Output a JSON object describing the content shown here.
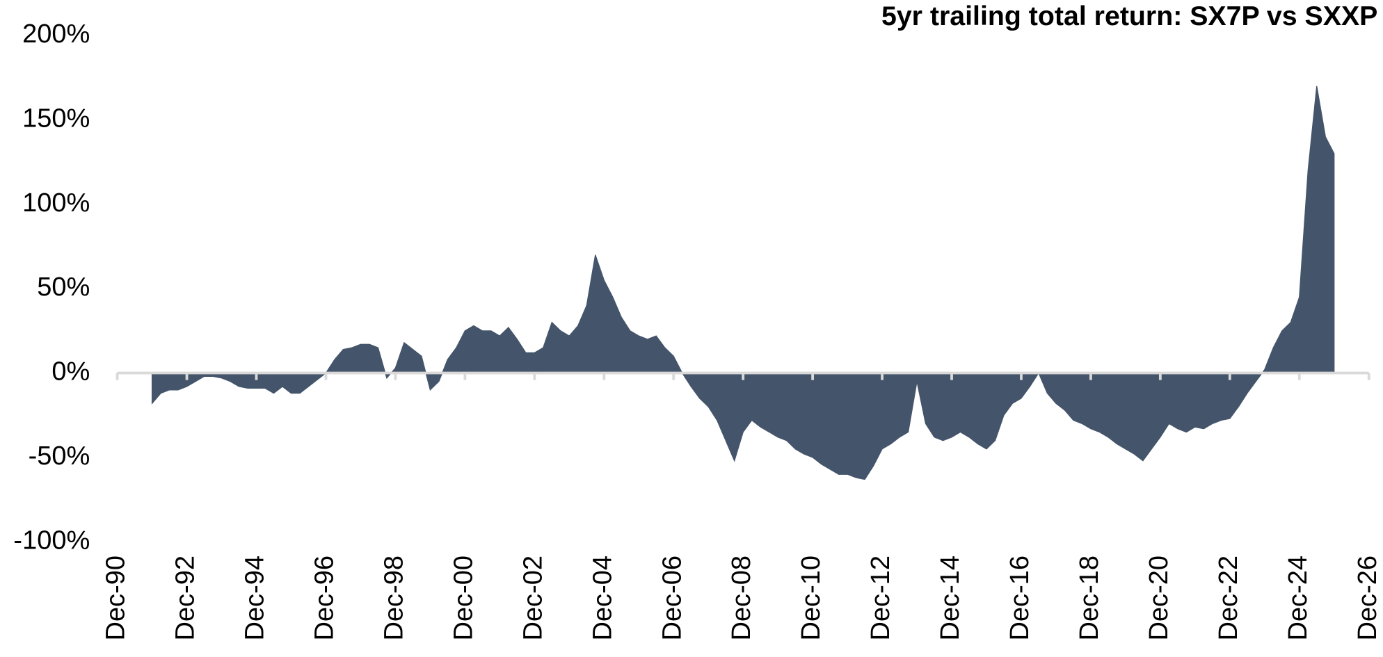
{
  "chart_data": {
    "type": "area",
    "title": "5yr trailing total return: SX7P vs SXXP",
    "color": "#44546a",
    "categories": [
      "Dec-90",
      null,
      null,
      null,
      null,
      null,
      null,
      null,
      "Dec-92",
      null,
      null,
      null,
      null,
      null,
      null,
      null,
      "Dec-94",
      null,
      null,
      null,
      null,
      null,
      null,
      null,
      "Dec-96",
      null,
      null,
      null,
      null,
      null,
      null,
      null,
      "Dec-98",
      null,
      null,
      null,
      null,
      null,
      null,
      null,
      "Dec-00",
      null,
      null,
      null,
      null,
      null,
      null,
      null,
      "Dec-02",
      null,
      null,
      null,
      null,
      null,
      null,
      null,
      "Dec-04",
      null,
      null,
      null,
      null,
      null,
      null,
      null,
      "Dec-06",
      null,
      null,
      null,
      null,
      null,
      null,
      null,
      "Dec-08",
      null,
      null,
      null,
      null,
      null,
      null,
      null,
      "Dec-10",
      null,
      null,
      null,
      null,
      null,
      null,
      null,
      "Dec-12",
      null,
      null,
      null,
      null,
      null,
      null,
      null,
      "Dec-14",
      null,
      null,
      null,
      null,
      null,
      null,
      null,
      "Dec-16",
      null,
      null,
      null,
      null,
      null,
      null,
      null,
      "Dec-18",
      null,
      null,
      null,
      null,
      null,
      null,
      null,
      "Dec-20",
      null,
      null,
      null,
      null,
      null,
      null,
      null,
      "Dec-22",
      null,
      null,
      null,
      null,
      null,
      null,
      null,
      "Dec-24",
      null,
      null,
      null,
      null,
      null,
      null,
      null,
      "Dec-26"
    ],
    "values": [
      null,
      null,
      null,
      null,
      -18,
      -12,
      -10,
      -10,
      -8,
      -5,
      -2,
      -2,
      -3,
      -5,
      -8,
      -9,
      -9,
      -9,
      -12,
      -8,
      -12,
      -12,
      -8,
      -4,
      0,
      8,
      14,
      15,
      17,
      17,
      15,
      -3,
      3,
      18,
      14,
      10,
      -10,
      -5,
      8,
      15,
      25,
      28,
      25,
      25,
      22,
      27,
      20,
      12,
      12,
      15,
      30,
      25,
      22,
      28,
      40,
      70,
      55,
      45,
      33,
      25,
      22,
      20,
      22,
      15,
      10,
      0,
      -8,
      -15,
      -20,
      -28,
      -40,
      -52,
      -35,
      -28,
      -32,
      -35,
      -38,
      -40,
      -45,
      -48,
      -50,
      -54,
      -57,
      -60,
      -60,
      -62,
      -63,
      -55,
      -45,
      -42,
      -38,
      -35,
      -5,
      -30,
      -38,
      -40,
      -38,
      -35,
      -38,
      -42,
      -45,
      -40,
      -25,
      -18,
      -15,
      -8,
      0,
      -12,
      -18,
      -22,
      -28,
      -30,
      -33,
      -35,
      -38,
      -42,
      -45,
      -48,
      -52,
      -45,
      -38,
      -30,
      -33,
      -35,
      -32,
      -33,
      -30,
      -28,
      -27,
      -20,
      -12,
      -5,
      2,
      15,
      25,
      30,
      45,
      120,
      170,
      140,
      130,
      null,
      null,
      null,
      null
    ],
    "ylim": [
      -100,
      200
    ],
    "yticks": [
      {
        "value": -100,
        "label": "-100%"
      },
      {
        "value": -50,
        "label": "-50%"
      },
      {
        "value": 0,
        "label": "0%"
      },
      {
        "value": 50,
        "label": "50%"
      },
      {
        "value": 100,
        "label": "100%"
      },
      {
        "value": 150,
        "label": "150%"
      },
      {
        "value": 200,
        "label": "200%"
      }
    ]
  }
}
